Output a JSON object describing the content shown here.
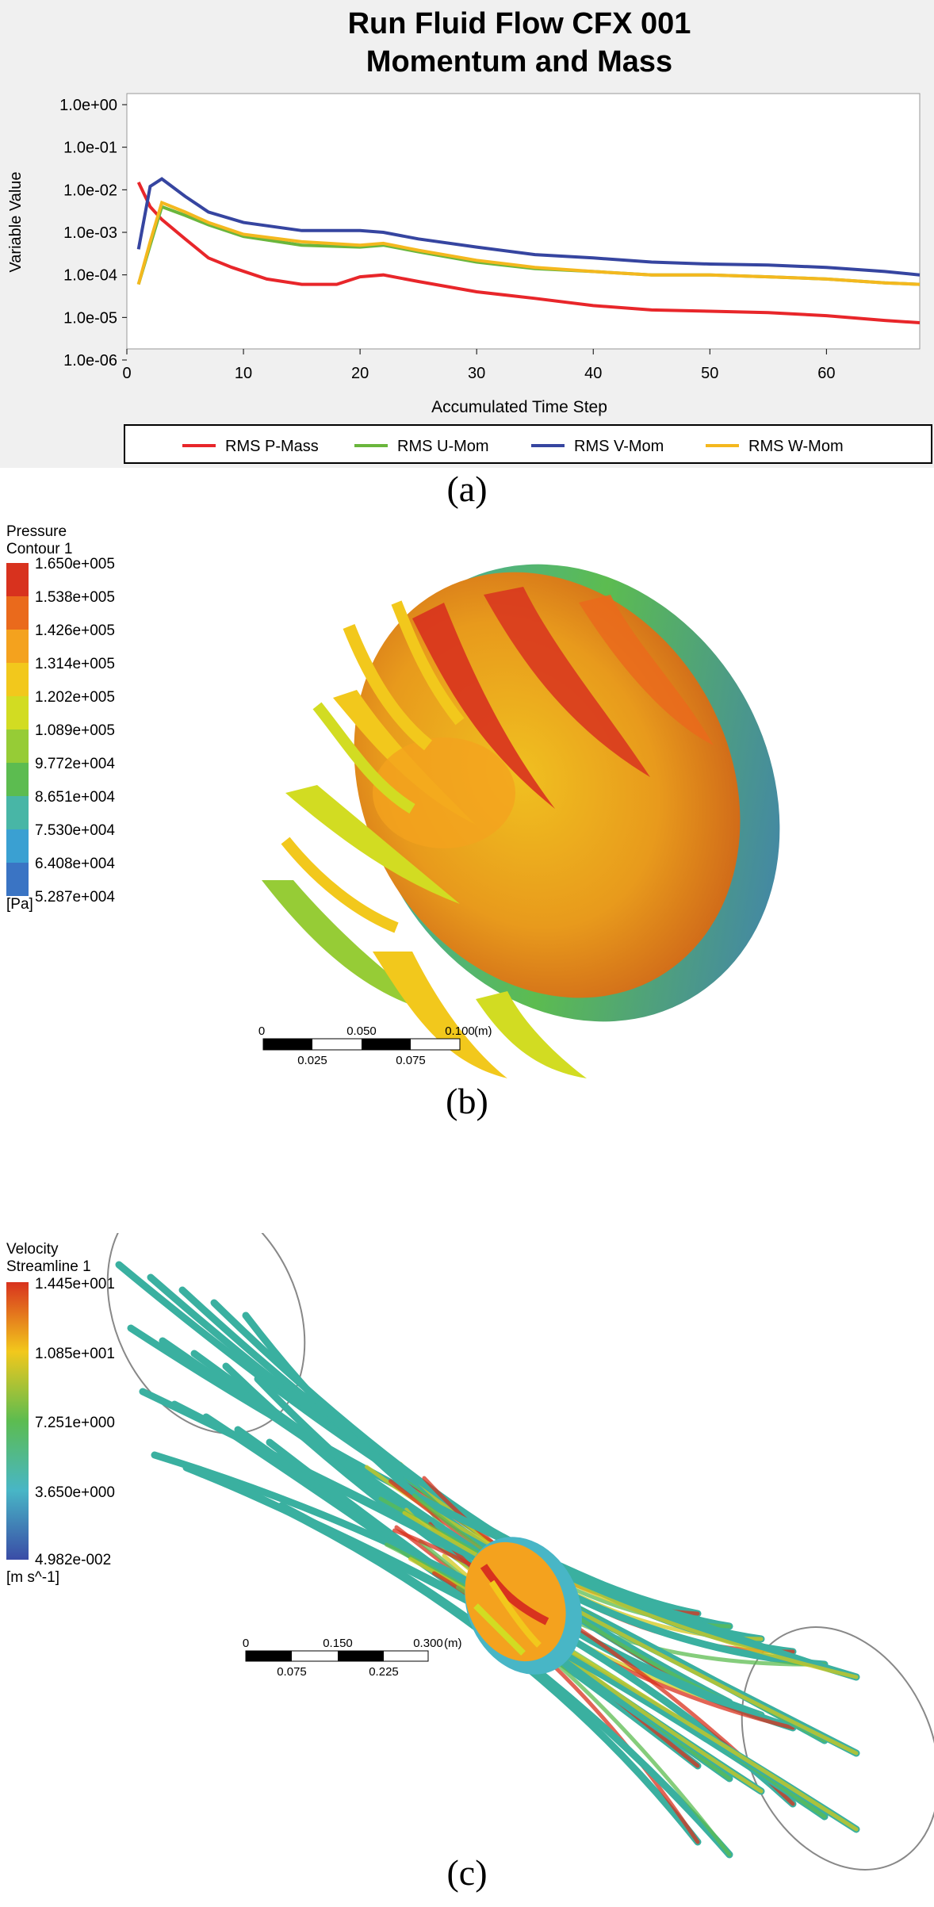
{
  "panel_a": {
    "caption": "(a)",
    "chart_data": {
      "type": "line",
      "title": "Run Fluid Flow CFX 001",
      "subtitle": "Momentum and Mass",
      "xlabel": "Accumulated Time Step",
      "ylabel": "Variable Value",
      "yscale": "log",
      "xlim": [
        0,
        68
      ],
      "ylim": [
        1e-06,
        1
      ],
      "x_ticks": [
        0,
        10,
        20,
        30,
        40,
        50,
        60
      ],
      "y_ticks": [
        "1.0e+00",
        "1.0e-01",
        "1.0e-02",
        "1.0e-03",
        "1.0e-04",
        "1.0e-05",
        "1.0e-06"
      ],
      "grid": false,
      "legend_position": "bottom",
      "series": [
        {
          "name": "RMS P-Mass",
          "color": "#e8262a",
          "x": [
            1,
            2,
            3,
            5,
            7,
            9,
            12,
            15,
            18,
            20,
            22,
            25,
            30,
            35,
            40,
            45,
            50,
            55,
            60,
            65,
            68
          ],
          "y": [
            0.015,
            0.004,
            0.002,
            0.0007,
            0.00025,
            0.00015,
            8e-05,
            6e-05,
            6e-05,
            9e-05,
            0.0001,
            7e-05,
            4e-05,
            2.8e-05,
            1.9e-05,
            1.5e-05,
            1.4e-05,
            1.3e-05,
            1.1e-05,
            8.5e-06,
            7.5e-06
          ]
        },
        {
          "name": "RMS U-Mom",
          "color": "#6ab63c",
          "x": [
            1,
            2,
            3,
            5,
            7,
            10,
            15,
            20,
            22,
            25,
            30,
            35,
            40,
            45,
            50,
            55,
            60,
            65,
            68
          ],
          "y": [
            6e-05,
            0.0005,
            0.004,
            0.0025,
            0.0015,
            0.0008,
            0.0005,
            0.00045,
            0.0005,
            0.00035,
            0.0002,
            0.00014,
            0.00012,
            0.0001,
            0.0001,
            9e-05,
            8e-05,
            6.5e-05,
            6e-05
          ]
        },
        {
          "name": "RMS V-Mom",
          "color": "#3645a0",
          "x": [
            1,
            2,
            3,
            5,
            7,
            10,
            15,
            20,
            22,
            25,
            30,
            35,
            40,
            45,
            50,
            55,
            60,
            65,
            68
          ],
          "y": [
            0.0004,
            0.012,
            0.018,
            0.007,
            0.003,
            0.0017,
            0.0011,
            0.0011,
            0.001,
            0.0007,
            0.00045,
            0.0003,
            0.00025,
            0.0002,
            0.00018,
            0.00017,
            0.00015,
            0.00012,
            0.0001
          ]
        },
        {
          "name": "RMS W-Mom",
          "color": "#f4b81e",
          "x": [
            1,
            2,
            3,
            5,
            7,
            10,
            15,
            20,
            22,
            25,
            30,
            35,
            40,
            45,
            50,
            55,
            60,
            65,
            68
          ],
          "y": [
            6e-05,
            0.0006,
            0.005,
            0.003,
            0.0017,
            0.0009,
            0.0006,
            0.0005,
            0.00055,
            0.00038,
            0.00022,
            0.00015,
            0.00012,
            0.0001,
            0.0001,
            9e-05,
            8e-05,
            6.5e-05,
            6e-05
          ]
        }
      ]
    }
  },
  "panel_b": {
    "caption": "(b)",
    "legend_title_1": "Pressure",
    "legend_title_2": "Contour 1",
    "unit": "[Pa]",
    "levels": [
      "1.650e+005",
      "1.538e+005",
      "1.426e+005",
      "1.314e+005",
      "1.202e+005",
      "1.089e+005",
      "9.772e+004",
      "8.651e+004",
      "7.530e+004",
      "6.408e+004",
      "5.287e+004"
    ],
    "colors": [
      "#d8321e",
      "#ea6a1c",
      "#f4a21e",
      "#f2c81c",
      "#d2dc22",
      "#96cc36",
      "#5cbc50",
      "#48b6a6",
      "#3aa0d2",
      "#3a74c4",
      "#3a4ca6"
    ],
    "scale": {
      "labels_top": [
        "0",
        "0.050",
        "0.100"
      ],
      "labels_bottom": [
        "0.025",
        "0.075"
      ],
      "unit": "(m)"
    }
  },
  "panel_c": {
    "caption": "(c)",
    "legend_title_1": "Velocity",
    "legend_title_2": "Streamline 1",
    "unit": "[m s^-1]",
    "levels": [
      "1.445e+001",
      "1.085e+001",
      "7.251e+000",
      "3.650e+000",
      "4.982e-002"
    ],
    "gradient": [
      "#d8321e",
      "#f2c81c",
      "#5cbc50",
      "#48b6c6",
      "#3a4ca6"
    ],
    "scale": {
      "labels_top": [
        "0",
        "0.150",
        "0.300"
      ],
      "labels_bottom": [
        "0.075",
        "0.225"
      ],
      "unit": "(m)"
    }
  }
}
